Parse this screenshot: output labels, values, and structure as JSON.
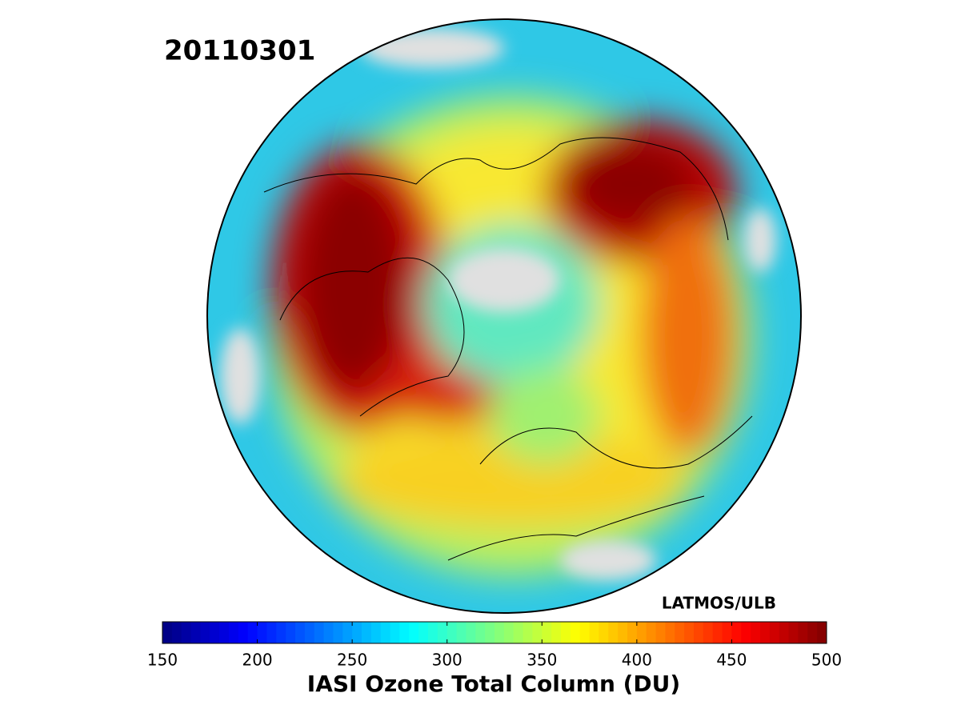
{
  "date": "20110301",
  "credit": "LATMOS/ULB",
  "colorbar": {
    "label": "IASI Ozone Total Column (DU)",
    "colormap": "jet",
    "range": [
      150,
      500
    ],
    "ticks": [
      150,
      200,
      250,
      300,
      350,
      400,
      450,
      500
    ]
  }
}
